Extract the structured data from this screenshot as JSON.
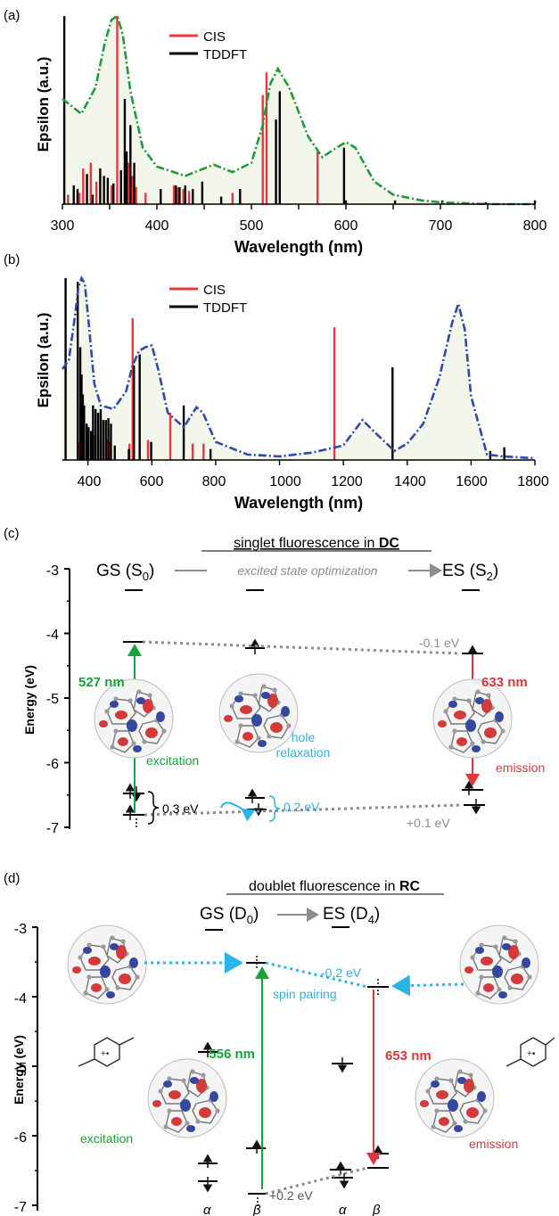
{
  "panel_a": {
    "label": "(a)",
    "xlabel": "Wavelength (nm)",
    "ylabel": "Epsilon (a.u.)",
    "xticks": [
      "300",
      "400",
      "500",
      "600",
      "700",
      "800"
    ],
    "legend": [
      "CIS",
      "TDDFT"
    ]
  },
  "panel_b": {
    "label": "(b)",
    "xlabel": "Wavelength (nm)",
    "ylabel": "Epsilon (a.u.)",
    "xticks": [
      "400",
      "600",
      "800",
      "1000",
      "1200",
      "1400",
      "1600",
      "1800"
    ],
    "legend": [
      "CIS",
      "TDDFT"
    ]
  },
  "panel_c": {
    "label": "(c)",
    "title_pre": "singlet fluorescence in ",
    "title_bold": "DC",
    "gs": "GS (S",
    "gs_sub": "0",
    "es": "ES (S",
    "es_sub": "2",
    "close": ")",
    "arrow_text": "excited state optimization",
    "ylabel": "Energy (eV)",
    "yticks": [
      "-3",
      "-4",
      "-5",
      "-6",
      "-7"
    ],
    "exc_nm": "527 nm",
    "em_nm": "633 nm",
    "shift_top": "-0.1 eV",
    "shift_bottom": "+0.1 eV",
    "gap_left": "0.3 eV",
    "gap_mid": "0.2 eV",
    "excitation": "excitation",
    "hole1": "hole",
    "hole2": "relaxation",
    "emission": "emission"
  },
  "panel_d": {
    "label": "(d)",
    "title_pre": "doublet fluorescence in ",
    "title_bold": "RC",
    "gs": "GS (D",
    "gs_sub": "0",
    "es": "ES (D",
    "es_sub": "4",
    "close": ")",
    "ylabel": "Energy (eV)",
    "yticks": [
      "-3",
      "-4",
      "-5",
      "-6",
      "-7"
    ],
    "exc_nm": "556 nm",
    "em_nm": "653 nm",
    "shift_top": "-0.2 eV",
    "spin": "spin pairing",
    "shift_bottom": "+0.2 eV",
    "excitation": "excitation",
    "emission": "emission",
    "alpha": "α",
    "beta": "β"
  },
  "colors": {
    "cis": "#e8383d",
    "tddft": "#000000",
    "curve_a": "#1f9b3a",
    "curve_b": "#2f4aa8",
    "green": "#1aa33a",
    "red": "#e0353b",
    "cyan": "#29b6e6",
    "gray": "#8c8c8c"
  },
  "chart_data": [
    {
      "type": "bar",
      "panel": "(a)",
      "xlabel": "Wavelength (nm)",
      "ylabel": "Epsilon (a.u.)",
      "xlim": [
        300,
        800
      ],
      "series": [
        {
          "name": "CIS",
          "x": [
            306,
            318,
            322,
            330,
            336,
            352,
            358,
            366,
            370,
            374,
            378,
            388,
            418,
            422,
            428,
            434,
            480,
            512,
            516,
            570
          ],
          "values": [
            0.05,
            0.06,
            0.19,
            0.22,
            0.12,
            0.1,
            1.0,
            0.2,
            0.22,
            0.15,
            0.09,
            0.06,
            0.1,
            0.09,
            0.08,
            0.07,
            0.06,
            0.58,
            0.7,
            0.28
          ]
        },
        {
          "name": "TDDFT",
          "x": [
            302,
            312,
            316,
            326,
            332,
            340,
            344,
            348,
            354,
            362,
            366,
            368,
            372,
            376,
            404,
            420,
            424,
            430,
            438,
            448,
            468,
            488,
            526,
            530,
            598,
            600,
            652,
            702,
            748,
            800
          ],
          "values": [
            1.0,
            0.1,
            0.08,
            0.16,
            0.05,
            0.19,
            0.15,
            0.14,
            0.11,
            0.18,
            0.56,
            0.28,
            0.42,
            0.22,
            0.08,
            0.1,
            0.09,
            0.1,
            0.08,
            0.12,
            0.04,
            0.08,
            0.45,
            0.6,
            0.3,
            0.02,
            0.02,
            0.02,
            0.01,
            0.02
          ]
        },
        {
          "name": "spectrum",
          "x": [
            300,
            320,
            335,
            345,
            352,
            358,
            364,
            372,
            385,
            400,
            430,
            460,
            480,
            500,
            512,
            520,
            528,
            540,
            560,
            575,
            590,
            600,
            610,
            630,
            650,
            680,
            700,
            750,
            800
          ],
          "values": [
            0.56,
            0.48,
            0.62,
            0.86,
            0.98,
            1.0,
            0.9,
            0.6,
            0.3,
            0.2,
            0.15,
            0.21,
            0.17,
            0.22,
            0.42,
            0.64,
            0.72,
            0.62,
            0.36,
            0.25,
            0.3,
            0.33,
            0.3,
            0.12,
            0.05,
            0.02,
            0.01,
            0.0,
            0.0
          ]
        }
      ]
    },
    {
      "type": "bar",
      "panel": "(b)",
      "xlabel": "Wavelength (nm)",
      "ylabel": "Epsilon (a.u.)",
      "xlim": [
        320,
        1800
      ],
      "series": [
        {
          "name": "CIS",
          "x": [
            372,
            380,
            388,
            398,
            420,
            440,
            460,
            470,
            530,
            540,
            588,
            658,
            728,
            762,
            1172
          ],
          "values": [
            0.1,
            0.13,
            0.11,
            0.12,
            0.14,
            0.12,
            0.11,
            0.1,
            0.09,
            0.78,
            0.11,
            0.26,
            0.09,
            0.09,
            0.73
          ]
        },
        {
          "name": "TDDFT",
          "x": [
            330,
            368,
            376,
            380,
            384,
            388,
            396,
            402,
            410,
            416,
            424,
            432,
            440,
            448,
            456,
            464,
            472,
            484,
            528,
            544,
            562,
            598,
            700,
            784,
            1354,
            1660,
            1704
          ],
          "values": [
            1.0,
            0.98,
            0.62,
            0.47,
            0.36,
            0.3,
            0.2,
            0.18,
            0.16,
            0.3,
            0.28,
            0.26,
            0.28,
            0.22,
            0.22,
            0.23,
            0.2,
            0.08,
            0.06,
            0.52,
            0.58,
            0.1,
            0.3,
            0.06,
            0.51,
            0.05,
            0.07
          ]
        },
        {
          "name": "spectrum",
          "x": [
            320,
            340,
            360,
            370,
            380,
            390,
            400,
            420,
            440,
            480,
            520,
            540,
            560,
            580,
            600,
            620,
            650,
            700,
            740,
            760,
            800,
            900,
            1000,
            1100,
            1200,
            1260,
            1300,
            1360,
            1400,
            1450,
            1500,
            1540,
            1560,
            1580,
            1600,
            1650,
            1700,
            1800
          ],
          "values": [
            0.5,
            0.55,
            0.8,
            0.95,
            1.0,
            0.97,
            0.8,
            0.42,
            0.3,
            0.28,
            0.38,
            0.52,
            0.6,
            0.62,
            0.63,
            0.5,
            0.26,
            0.18,
            0.29,
            0.26,
            0.1,
            0.03,
            0.02,
            0.04,
            0.08,
            0.22,
            0.15,
            0.05,
            0.09,
            0.2,
            0.45,
            0.75,
            0.86,
            0.72,
            0.35,
            0.03,
            0.02,
            0.01
          ]
        }
      ]
    }
  ]
}
